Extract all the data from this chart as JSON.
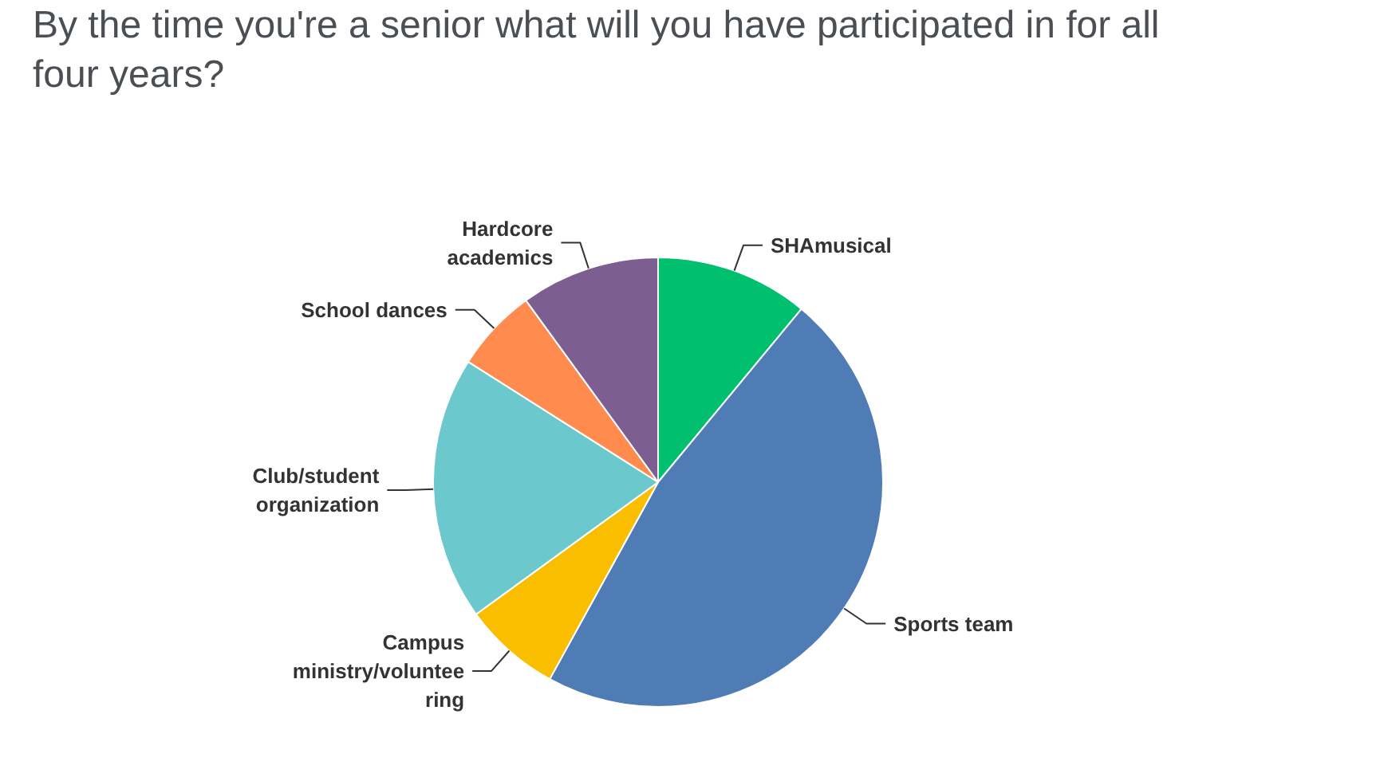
{
  "chart_data": {
    "type": "pie",
    "title": "By the time you're a senior what will you have participated in for all four years?",
    "categories": [
      "SHAmusical",
      "Sports team",
      "Campus ministry/volunteering",
      "Club/student organization",
      "School dances",
      "Hardcore academics"
    ],
    "values": [
      11,
      47,
      7,
      19,
      6,
      10
    ],
    "colors": [
      "#00bf6f",
      "#507cb6",
      "#f9be00",
      "#6bc8cd",
      "#ff8b4f",
      "#7d5e90"
    ]
  }
}
